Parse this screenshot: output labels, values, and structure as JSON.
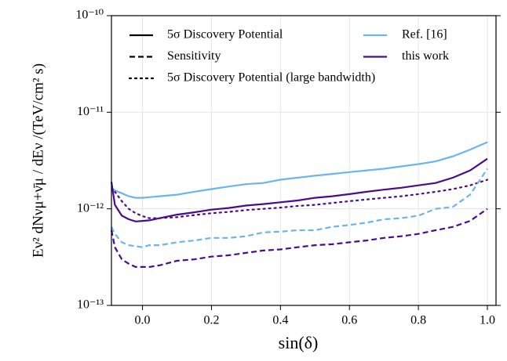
{
  "chart_data": {
    "type": "line",
    "x_label": "sin(δ)",
    "y_label": "Eν² dNνμ+ν̄μ / dEν  /(TeV/cm² s)",
    "xlim": [
      -0.09,
      1.025
    ],
    "xticks": [
      {
        "value": 0,
        "label": "0.0"
      },
      0.2,
      0.4,
      0.6,
      0.8,
      {
        "value": 1,
        "label": "1.0"
      }
    ],
    "ylim": [
      1e-13,
      1e-10
    ],
    "yticks": [
      {
        "value": 1e-13,
        "label": "10⁻¹³"
      },
      {
        "value": 1e-12,
        "label": "10⁻¹²"
      },
      {
        "value": 1e-11,
        "label": "10⁻¹¹"
      },
      {
        "value": 1e-10,
        "label": "10⁻¹⁰"
      }
    ],
    "log_y": true,
    "grid": true,
    "legend": {
      "styles": [
        {
          "label": "5σ Discovery Potential",
          "dash": "solid"
        },
        {
          "label": "Sensitivity",
          "dash": "dashed"
        },
        {
          "label": "5σ Discovery Potential (large bandwidth)",
          "dash": "dotted"
        }
      ],
      "colors": [
        {
          "label": "Ref. [16]",
          "color": "#6cb4ee"
        },
        {
          "label": "this work",
          "color": "#4b0c8c"
        }
      ]
    },
    "x": [
      -0.09,
      -0.08,
      -0.06,
      -0.04,
      -0.02,
      0,
      0.02,
      0.05,
      0.1,
      0.15,
      0.2,
      0.25,
      0.3,
      0.35,
      0.4,
      0.45,
      0.5,
      0.55,
      0.6,
      0.65,
      0.7,
      0.75,
      0.8,
      0.85,
      0.9,
      0.95,
      1.0
    ],
    "series": [
      {
        "color": "#6cb4ee",
        "dash": "solid",
        "values": [
          1.65e-12,
          1.55e-12,
          1.45e-12,
          1.35e-12,
          1.3e-12,
          1.3e-12,
          1.32e-12,
          1.35e-12,
          1.4e-12,
          1.5e-12,
          1.6e-12,
          1.7e-12,
          1.8e-12,
          1.85e-12,
          2e-12,
          2.1e-12,
          2.2e-12,
          2.3e-12,
          2.4e-12,
          2.5e-12,
          2.6e-12,
          2.75e-12,
          2.9e-12,
          3.1e-12,
          3.5e-12,
          4.1e-12,
          4.9e-12
        ]
      },
      {
        "color": "#4b0c8c",
        "dash": "solid",
        "values": [
          1.9e-12,
          1.1e-12,
          8.5e-13,
          7.8e-13,
          7.4e-13,
          7.5e-13,
          7.6e-13,
          8e-13,
          8.7e-13,
          9.2e-13,
          9.8e-13,
          1.02e-12,
          1.08e-12,
          1.12e-12,
          1.17e-12,
          1.22e-12,
          1.3e-12,
          1.35e-12,
          1.42e-12,
          1.5e-12,
          1.58e-12,
          1.65e-12,
          1.75e-12,
          1.85e-12,
          2.1e-12,
          2.5e-12,
          3.3e-12
        ]
      },
      {
        "color": "#4b0c8c",
        "dash": "dotted",
        "values": [
          null,
          1.5e-12,
          1.2e-12,
          1e-12,
          9e-13,
          8.4e-13,
          8e-13,
          8e-13,
          8.2e-13,
          8.6e-13,
          9e-13,
          9.3e-13,
          9.7e-13,
          1e-12,
          1.03e-12,
          1.07e-12,
          1.1e-12,
          1.15e-12,
          1.2e-12,
          1.25e-12,
          1.3e-12,
          1.35e-12,
          1.42e-12,
          1.5e-12,
          1.6e-12,
          1.75e-12,
          2e-12
        ]
      },
      {
        "color": "#6cb4ee",
        "dash": "dashed",
        "values": [
          6.5e-13,
          5.5e-13,
          4.5e-13,
          4.2e-13,
          4.1e-13,
          4e-13,
          4.2e-13,
          4.2e-13,
          4.5e-13,
          4.7e-13,
          5e-13,
          5e-13,
          5.2e-13,
          5.7e-13,
          5.8e-13,
          6e-13,
          6e-13,
          6.5e-13,
          6.8e-13,
          7.2e-13,
          7.8e-13,
          8e-13,
          8.5e-13,
          1e-12,
          1.05e-12,
          1.4e-12,
          2.6e-12
        ]
      },
      {
        "color": "#4b0c8c",
        "dash": "dashed",
        "values": [
          6e-13,
          4e-13,
          3e-13,
          2.7e-13,
          2.5e-13,
          2.5e-13,
          2.5e-13,
          2.6e-13,
          2.9e-13,
          3e-13,
          3.2e-13,
          3.3e-13,
          3.5e-13,
          3.7e-13,
          3.8e-13,
          4e-13,
          4.2e-13,
          4.3e-13,
          4.5e-13,
          4.7e-13,
          5e-13,
          5.2e-13,
          5.5e-13,
          6e-13,
          6.5e-13,
          7.5e-13,
          1e-12
        ]
      }
    ]
  }
}
